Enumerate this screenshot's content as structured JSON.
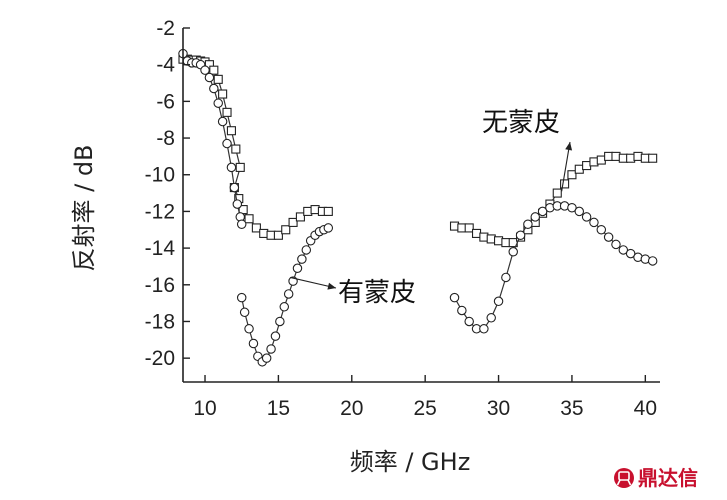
{
  "chart_data": {
    "type": "line",
    "xlabel": "频率 / GHz",
    "ylabel": "反射率 / dB",
    "xlim": [
      8.5,
      41
    ],
    "ylim": [
      -21.3,
      -2
    ],
    "xticks": [
      10,
      15,
      20,
      25,
      30,
      35,
      40
    ],
    "yticks": [
      -2,
      -4,
      -6,
      -8,
      -10,
      -12,
      -14,
      -16,
      -18,
      -20
    ],
    "x_tick_labels": [
      "10",
      "15",
      "20",
      "25",
      "30",
      "35",
      "40"
    ],
    "y_tick_labels": [
      "-2",
      "-4",
      "-6",
      "-8",
      "-10",
      "-12",
      "-14",
      "-16",
      "-18",
      "-20"
    ],
    "grid": false,
    "series": [
      {
        "name": "无蒙皮",
        "marker": "square",
        "segments": [
          [
            [
              8.5,
              -3.7
            ],
            [
              8.8,
              -3.7
            ],
            [
              9.1,
              -3.75
            ],
            [
              9.4,
              -3.75
            ],
            [
              9.7,
              -3.8
            ],
            [
              10.0,
              -3.85
            ],
            [
              10.3,
              -4.0
            ],
            [
              10.6,
              -4.3
            ],
            [
              10.9,
              -4.8
            ],
            [
              11.2,
              -5.6
            ],
            [
              11.5,
              -6.6
            ],
            [
              11.8,
              -7.6
            ],
            [
              12.1,
              -8.6
            ],
            [
              12.4,
              -9.6
            ],
            [
              12.0,
              -10.7
            ],
            [
              12.3,
              -11.3
            ],
            [
              12.6,
              -11.9
            ],
            [
              13.0,
              -12.4
            ],
            [
              13.5,
              -12.9
            ],
            [
              14.0,
              -13.2
            ],
            [
              14.5,
              -13.3
            ],
            [
              15.0,
              -13.3
            ],
            [
              15.5,
              -13.0
            ],
            [
              16.0,
              -12.6
            ],
            [
              16.5,
              -12.3
            ],
            [
              17.0,
              -12.0
            ],
            [
              17.5,
              -11.9
            ],
            [
              18.0,
              -12.0
            ],
            [
              18.4,
              -12.0
            ]
          ],
          [
            [
              27.0,
              -12.8
            ],
            [
              27.5,
              -12.9
            ],
            [
              28.0,
              -12.9
            ],
            [
              28.5,
              -13.2
            ],
            [
              29.0,
              -13.4
            ],
            [
              29.5,
              -13.5
            ],
            [
              30.0,
              -13.6
            ],
            [
              30.5,
              -13.7
            ],
            [
              31.0,
              -13.7
            ],
            [
              31.5,
              -13.4
            ],
            [
              32.0,
              -13.0
            ],
            [
              32.5,
              -12.6
            ],
            [
              33.0,
              -12.1
            ],
            [
              33.5,
              -11.6
            ],
            [
              34.0,
              -11.0
            ],
            [
              34.5,
              -10.5
            ],
            [
              35.0,
              -10.0
            ],
            [
              35.5,
              -9.7
            ],
            [
              36.0,
              -9.5
            ],
            [
              36.5,
              -9.3
            ],
            [
              37.0,
              -9.2
            ],
            [
              37.5,
              -9.0
            ],
            [
              38.0,
              -9.0
            ],
            [
              38.5,
              -9.1
            ],
            [
              39.0,
              -9.1
            ],
            [
              39.5,
              -9.0
            ],
            [
              40.0,
              -9.1
            ],
            [
              40.5,
              -9.1
            ]
          ]
        ]
      },
      {
        "name": "有蒙皮",
        "marker": "circle",
        "segments": [
          [
            [
              8.5,
              -3.4
            ],
            [
              8.8,
              -3.8
            ],
            [
              9.1,
              -3.9
            ],
            [
              9.4,
              -3.9
            ],
            [
              9.7,
              -4.0
            ],
            [
              10.0,
              -4.3
            ],
            [
              10.3,
              -4.7
            ],
            [
              10.6,
              -5.3
            ],
            [
              10.9,
              -6.1
            ],
            [
              11.2,
              -7.1
            ],
            [
              11.5,
              -8.3
            ],
            [
              11.8,
              -9.6
            ],
            [
              12.0,
              -10.7
            ],
            [
              12.2,
              -11.6
            ],
            [
              12.4,
              -12.3
            ],
            [
              12.5,
              -12.7
            ]
          ],
          [
            [
              12.5,
              -16.7
            ],
            [
              12.7,
              -17.5
            ],
            [
              13.0,
              -18.4
            ],
            [
              13.3,
              -19.2
            ],
            [
              13.6,
              -19.9
            ],
            [
              13.9,
              -20.2
            ],
            [
              14.2,
              -20.0
            ],
            [
              14.5,
              -19.5
            ],
            [
              14.8,
              -18.8
            ],
            [
              15.1,
              -18.0
            ],
            [
              15.4,
              -17.2
            ],
            [
              15.7,
              -16.5
            ],
            [
              16.0,
              -15.8
            ],
            [
              16.3,
              -15.1
            ],
            [
              16.6,
              -14.6
            ],
            [
              16.9,
              -14.1
            ],
            [
              17.2,
              -13.6
            ],
            [
              17.5,
              -13.3
            ],
            [
              17.8,
              -13.1
            ],
            [
              18.1,
              -13.0
            ],
            [
              18.4,
              -12.9
            ]
          ],
          [
            [
              27.0,
              -16.7
            ],
            [
              27.5,
              -17.4
            ],
            [
              28.0,
              -18.0
            ],
            [
              28.5,
              -18.4
            ],
            [
              29.0,
              -18.4
            ],
            [
              29.5,
              -17.8
            ],
            [
              30.0,
              -16.9
            ],
            [
              30.5,
              -15.6
            ],
            [
              31.0,
              -14.2
            ],
            [
              31.5,
              -13.3
            ],
            [
              32.0,
              -12.7
            ],
            [
              32.5,
              -12.3
            ],
            [
              33.0,
              -12.0
            ],
            [
              33.5,
              -11.8
            ],
            [
              34.0,
              -11.7
            ],
            [
              34.5,
              -11.7
            ],
            [
              35.0,
              -11.8
            ],
            [
              35.5,
              -12.0
            ],
            [
              36.0,
              -12.3
            ],
            [
              36.5,
              -12.6
            ],
            [
              37.0,
              -13.0
            ],
            [
              37.5,
              -13.4
            ],
            [
              38.0,
              -13.8
            ],
            [
              38.5,
              -14.1
            ],
            [
              39.0,
              -14.3
            ],
            [
              39.5,
              -14.5
            ],
            [
              40.0,
              -14.6
            ],
            [
              40.5,
              -14.7
            ]
          ]
        ]
      }
    ],
    "annotations": [
      {
        "text": "无蒙皮",
        "points_to": [
          34.3,
          -10.9
        ]
      },
      {
        "text": "有蒙皮",
        "points_to": [
          15.8,
          -15.6
        ]
      }
    ]
  },
  "watermark": {
    "logo_icon": "ding-seal-icon",
    "text": "鼎达信",
    "color": "#c8102e"
  }
}
